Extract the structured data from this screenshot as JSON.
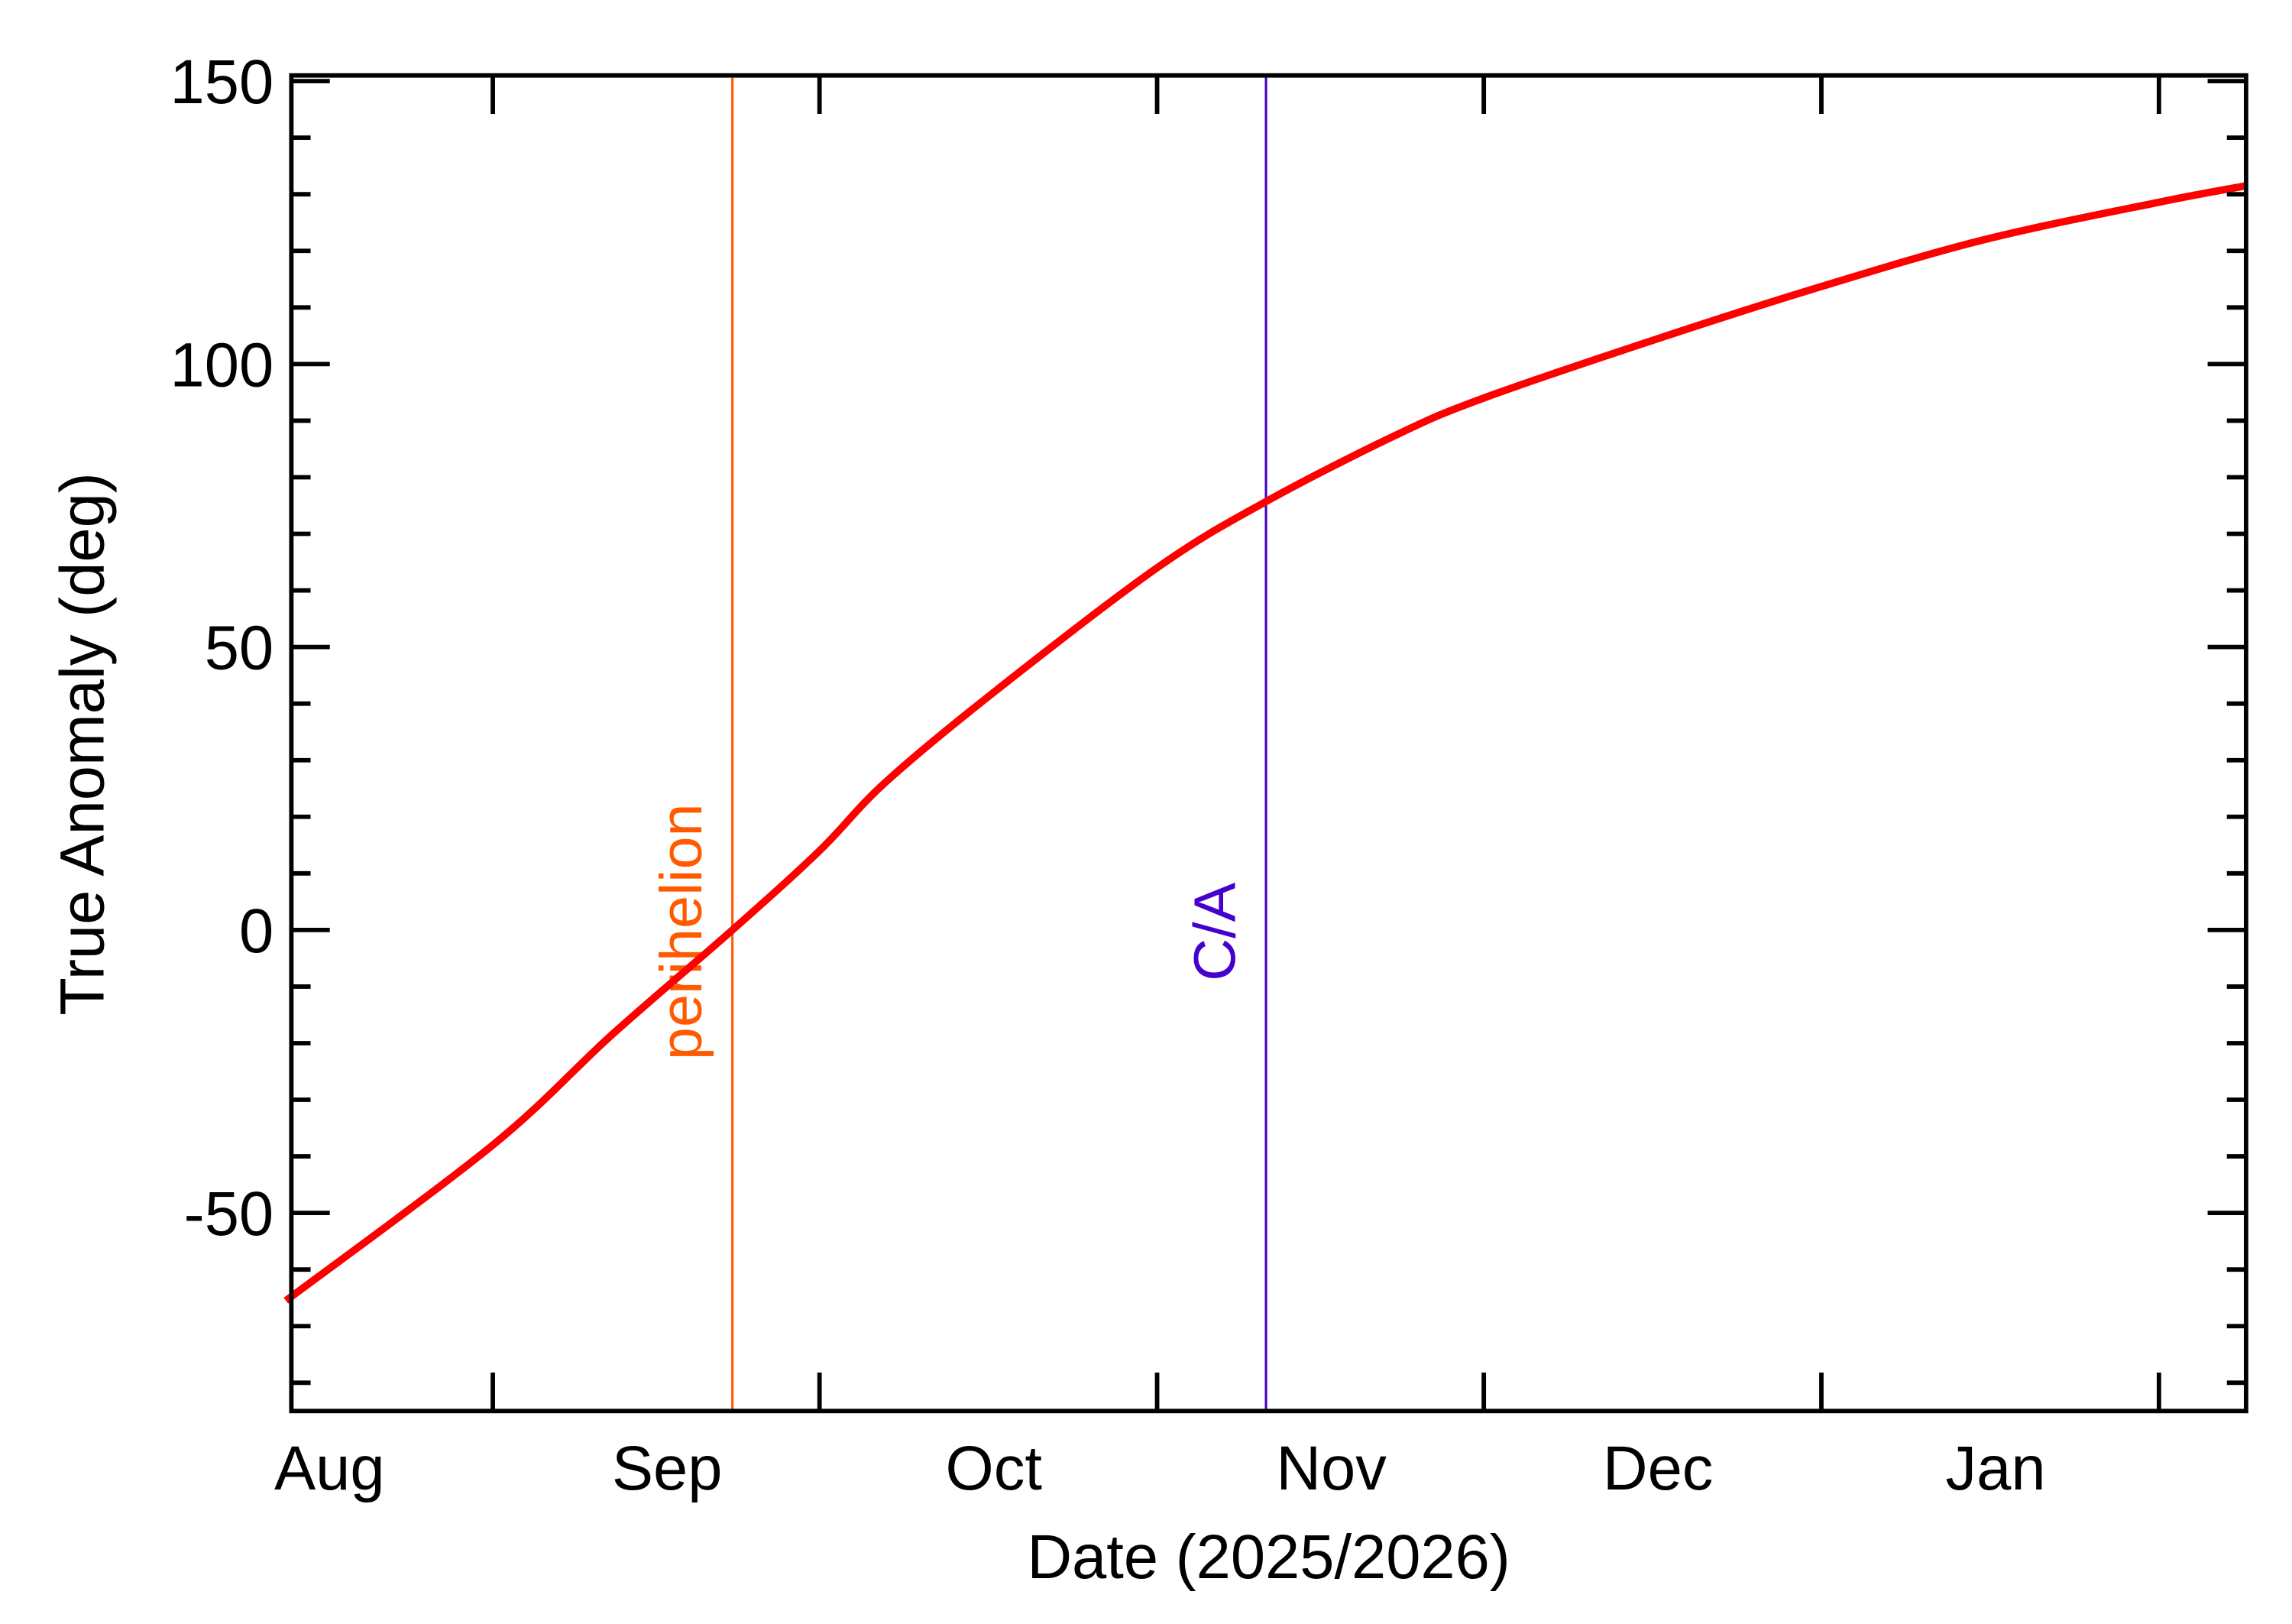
{
  "chart_data": {
    "type": "line",
    "title": "",
    "xlabel": "Date (2025/2026)",
    "ylabel": "True Anomaly (deg)",
    "xlim": [
      "2025-07-28",
      "2026-01-24"
    ],
    "ylim": [
      -85,
      151
    ],
    "grid": false,
    "x_tick_labels": [
      {
        "date": "2025-08-01",
        "label": "Aug"
      },
      {
        "date": "2025-09-01",
        "label": "Sep"
      },
      {
        "date": "2025-10-01",
        "label": "Oct"
      },
      {
        "date": "2025-11-01",
        "label": "Nov"
      },
      {
        "date": "2025-12-01",
        "label": "Dec"
      },
      {
        "date": "2026-01-01",
        "label": "Jan"
      }
    ],
    "x_ticks": [
      "2025-08-16",
      "2025-09-15",
      "2025-10-16",
      "2025-11-15",
      "2025-12-16",
      "2026-01-16"
    ],
    "y_ticks": [
      -50,
      0,
      50,
      100,
      150
    ],
    "y_tick_labels": [
      "-50",
      "0",
      "50",
      "100",
      "150"
    ],
    "y_minor_step": 10,
    "series": [
      {
        "color": "#ff0000",
        "x": [
          "2025-07-28",
          "2025-08-16",
          "2025-08-27",
          "2025-09-07",
          "2025-09-15",
          "2025-09-21",
          "2025-10-01",
          "2025-10-16",
          "2025-10-26",
          "2025-11-07",
          "2025-11-15",
          "2025-12-01",
          "2025-12-16",
          "2025-12-31",
          "2026-01-16",
          "2026-01-24"
        ],
        "y": [
          -65.5,
          -38,
          -18.4,
          0,
          14,
          26,
          42,
          64,
          75.7,
          87.5,
          94,
          104.5,
          113.7,
          122,
          128.6,
          131.5
        ]
      }
    ],
    "annotations": [
      {
        "label": "perihelion",
        "date": "2025-09-07",
        "color": "#ff5a00"
      },
      {
        "label": "C/A",
        "date": "2025-10-26",
        "color": "#4400cc"
      }
    ]
  }
}
